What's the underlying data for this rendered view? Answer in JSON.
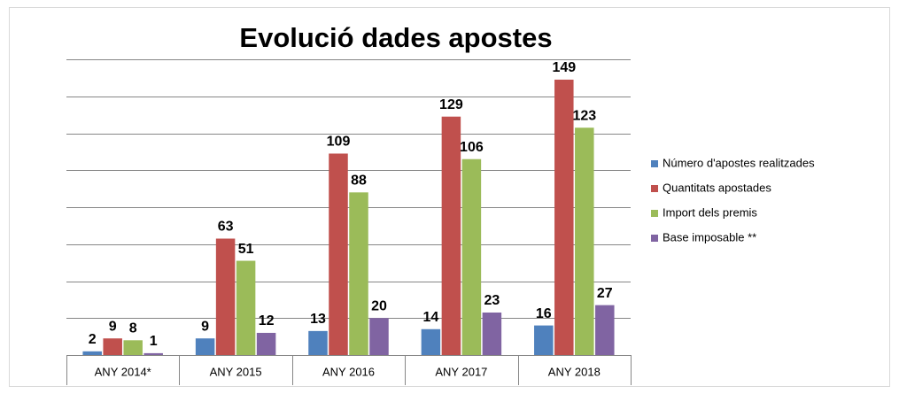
{
  "chart_data": {
    "type": "bar",
    "title": "Evolució dades apostes",
    "categories": [
      "ANY 2014*",
      "ANY 2015",
      "ANY 2016",
      "ANY 2017",
      "ANY 2018"
    ],
    "series": [
      {
        "name": "Número d'apostes realitzades",
        "color": "#4f81bd",
        "values": [
          2,
          9,
          13,
          14,
          16
        ]
      },
      {
        "name": "Quantitats apostades",
        "color": "#c0504d",
        "values": [
          9,
          63,
          109,
          129,
          149
        ]
      },
      {
        "name": "Import dels premis",
        "color": "#9bbb59",
        "values": [
          8,
          51,
          88,
          106,
          123
        ]
      },
      {
        "name": "Base imposable **",
        "color": "#8064a2",
        "values": [
          1,
          12,
          20,
          23,
          27
        ]
      }
    ],
    "ylim": [
      0,
      160
    ],
    "yticks": [
      0,
      20,
      40,
      60,
      80,
      100,
      120,
      140,
      160
    ],
    "grid": true,
    "legend": "right"
  }
}
